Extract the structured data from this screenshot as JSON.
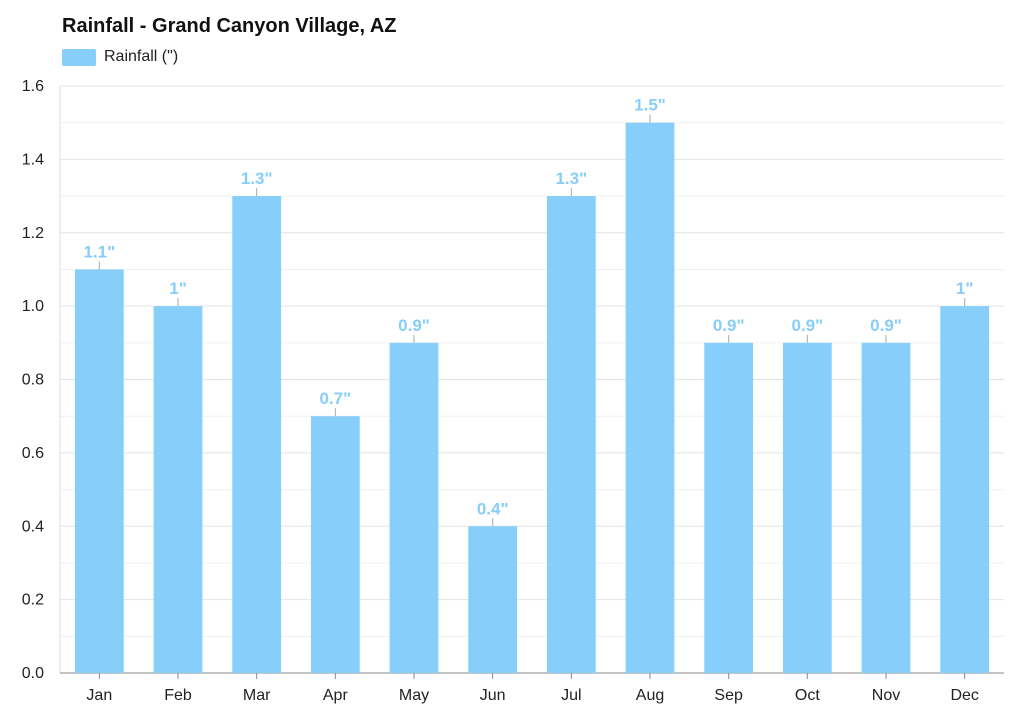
{
  "chart_data": {
    "type": "bar",
    "title": "Rainfall - Grand Canyon Village, AZ",
    "categories": [
      "Jan",
      "Feb",
      "Mar",
      "Apr",
      "May",
      "Jun",
      "Jul",
      "Aug",
      "Sep",
      "Oct",
      "Nov",
      "Dec"
    ],
    "series": [
      {
        "name": "Rainfall (\")",
        "values": [
          1.1,
          1.0,
          1.3,
          0.7,
          0.9,
          0.4,
          1.3,
          1.5,
          0.9,
          0.9,
          0.9,
          1.0
        ],
        "data_labels": [
          "1.1\"",
          "1\"",
          "1.3\"",
          "0.7\"",
          "0.9\"",
          "0.4\"",
          "1.3\"",
          "1.5\"",
          "0.9\"",
          "0.9\"",
          "0.9\"",
          "1\""
        ]
      }
    ],
    "y_ticks": [
      "0.0",
      "0.2",
      "0.4",
      "0.6",
      "0.8",
      "1.0",
      "1.2",
      "1.4",
      "1.6"
    ],
    "ylim": [
      0,
      1.6
    ],
    "xlabel": "",
    "ylabel": "",
    "legend_position": "top-left",
    "grid": true,
    "colors": {
      "bar": "#87cefa",
      "label": "#87cefa",
      "grid": "#e4e4e4",
      "axis": "#888888"
    }
  }
}
